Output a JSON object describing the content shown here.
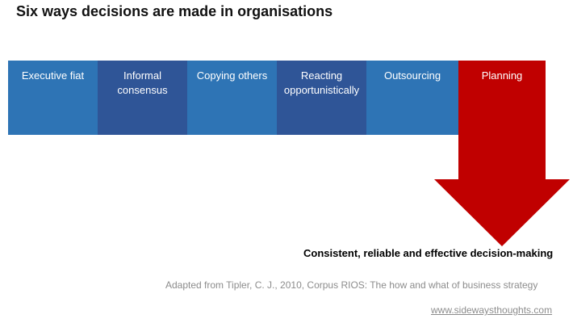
{
  "title": "Six ways decisions are made in organisations",
  "methods": [
    {
      "label": "Executive fiat",
      "color": "#2e74b5"
    },
    {
      "label": "Informal consensus",
      "color": "#2f5597"
    },
    {
      "label": "Copying others",
      "color": "#2e74b5"
    },
    {
      "label": "Reacting opportunistically",
      "color": "#2f5597"
    },
    {
      "label": "Outsourcing",
      "color": "#2e74b5"
    },
    {
      "label": "Planning",
      "color": "#c00000"
    }
  ],
  "outcome": "Consistent, reliable and effective decision-making",
  "source": "Adapted from Tipler, C. J., 2010, Corpus RIOS: The how and what of business strategy",
  "website": "www.sidewaysthoughts.com"
}
